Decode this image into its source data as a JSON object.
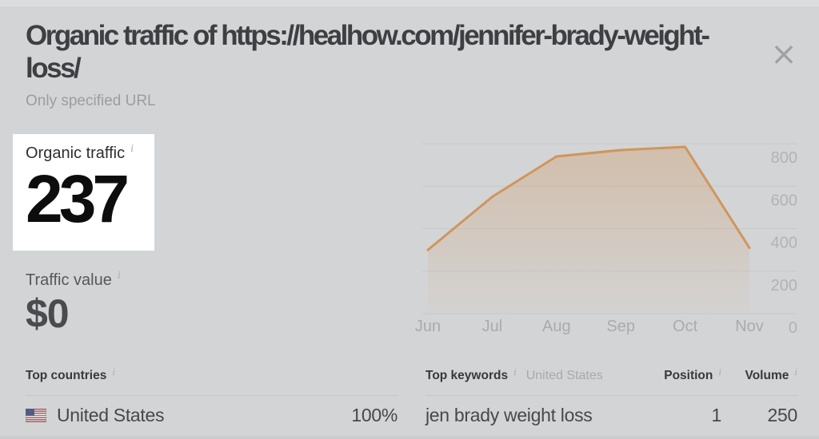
{
  "icons": {
    "info": "i",
    "close": "×"
  },
  "modal": {
    "title": "Organic traffic of https://healhow.com/jennifer-brady-weight-loss/",
    "subtitle": "Only specified URL"
  },
  "metrics": {
    "organic_traffic": {
      "label": "Organic traffic",
      "value": "237"
    },
    "traffic_value": {
      "label": "Traffic value",
      "value": "$0"
    }
  },
  "chart_data": {
    "type": "area",
    "categories": [
      "Jun",
      "Jul",
      "Aug",
      "Sep",
      "Oct",
      "Nov"
    ],
    "values": [
      300,
      550,
      740,
      770,
      785,
      310
    ],
    "yticks": [
      0,
      200,
      400,
      600,
      800
    ],
    "ylim": [
      0,
      800
    ],
    "title": "",
    "xlabel": "",
    "ylabel": "",
    "grid": true,
    "legend_position": "none",
    "line_color": "#d0955c",
    "fill_color": "#cf9257"
  },
  "top_countries": {
    "header": "Top countries",
    "rows": [
      {
        "flag": "us-flag",
        "country": "United States",
        "share": "100%"
      }
    ]
  },
  "top_keywords": {
    "header": "Top keywords",
    "scope": "United States",
    "position_label": "Position",
    "volume_label": "Volume",
    "rows": [
      {
        "keyword": "jen brady weight loss",
        "position": "1",
        "volume": "250"
      }
    ]
  }
}
